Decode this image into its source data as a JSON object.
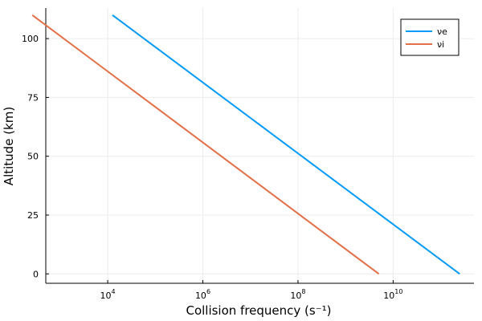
{
  "chart_data": {
    "type": "line",
    "xlabel": "Collision frequency (s⁻¹)",
    "ylabel": "Altitude (km)",
    "xscale": "log10",
    "xlim": [
      500,
      500000000000
    ],
    "ylim": [
      -4,
      113
    ],
    "xticks": [
      {
        "value": 10000,
        "base": "10",
        "exp": "4"
      },
      {
        "value": 1000000,
        "base": "10",
        "exp": "6"
      },
      {
        "value": 100000000,
        "base": "10",
        "exp": "8"
      },
      {
        "value": 10000000000,
        "base": "10",
        "exp": "10"
      }
    ],
    "yticks": [
      0,
      25,
      50,
      75,
      100
    ],
    "grid": true,
    "legend_position": "top-right",
    "series": [
      {
        "name": "νe",
        "color": "#009af9",
        "x": [
          12600,
          250000000000
        ],
        "y": [
          110,
          0
        ]
      },
      {
        "name": "νi",
        "color": "#e26f46",
        "x": [
          260,
          5000000000
        ],
        "y": [
          110,
          0
        ]
      }
    ]
  }
}
